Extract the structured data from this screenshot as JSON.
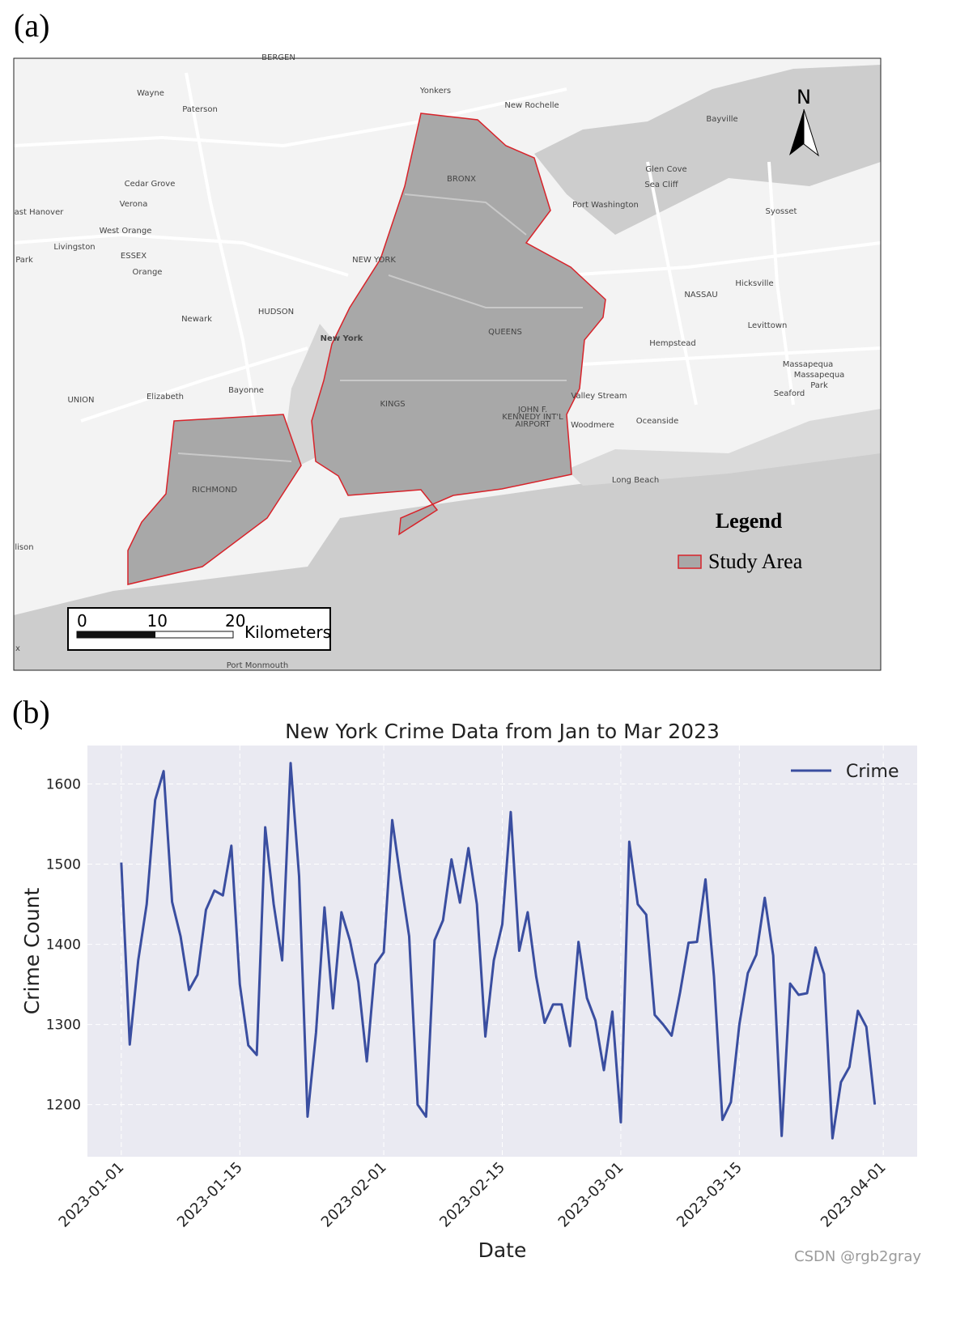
{
  "panel_a_label": "(a)",
  "panel_b_label": "(b)",
  "map": {
    "place_labels": [
      "BERGEN",
      "Wayne",
      "Paterson",
      "Yonkers",
      "New Rochelle",
      "Bayville",
      "Cedar Grove",
      "Verona",
      "ast Hanover",
      "West Orange",
      "Livingston",
      "ESSEX",
      "Orange",
      "Park",
      "BRONX",
      "Glen Cove",
      "Sea Cliff",
      "Port Washington",
      "Syosset",
      "NEW YORK",
      "Hicksville",
      "NASSAU",
      "HUDSON",
      "Newark",
      "New York",
      "QUEENS",
      "Levittown",
      "Hempstead",
      "Massapequa",
      "Massapequa",
      "Park",
      "Seaford",
      "UNION",
      "Elizabeth",
      "Bayonne",
      "KINGS",
      "Valley Stream",
      "JOHN F.",
      "KENNEDY INT'L",
      "AIRPORT",
      "Woodmere",
      "Oceanside",
      "RICHMOND",
      "Long Beach",
      "lison",
      "x",
      "Port Monmouth"
    ],
    "north": "N",
    "legend": {
      "title": "Legend",
      "items": [
        "Study Area"
      ]
    },
    "scale_bar": {
      "ticks": [
        0,
        10,
        20
      ],
      "unit": "Kilometers"
    }
  },
  "chart_data": {
    "type": "line",
    "title": "New York Crime Data from Jan to Mar 2023",
    "x_label": "Date",
    "y_label": "Crime Count",
    "x": [
      "2023-01-01",
      "2023-01-02",
      "2023-01-03",
      "2023-01-04",
      "2023-01-05",
      "2023-01-06",
      "2023-01-07",
      "2023-01-08",
      "2023-01-09",
      "2023-01-10",
      "2023-01-11",
      "2023-01-12",
      "2023-01-13",
      "2023-01-14",
      "2023-01-15",
      "2023-01-16",
      "2023-01-17",
      "2023-01-18",
      "2023-01-19",
      "2023-01-20",
      "2023-01-21",
      "2023-01-22",
      "2023-01-23",
      "2023-01-24",
      "2023-01-25",
      "2023-01-26",
      "2023-01-27",
      "2023-01-28",
      "2023-01-29",
      "2023-01-30",
      "2023-01-31",
      "2023-02-01",
      "2023-02-02",
      "2023-02-03",
      "2023-02-04",
      "2023-02-05",
      "2023-02-06",
      "2023-02-07",
      "2023-02-08",
      "2023-02-09",
      "2023-02-10",
      "2023-02-11",
      "2023-02-12",
      "2023-02-13",
      "2023-02-14",
      "2023-02-15",
      "2023-02-16",
      "2023-02-17",
      "2023-02-18",
      "2023-02-19",
      "2023-02-20",
      "2023-02-21",
      "2023-02-22",
      "2023-02-23",
      "2023-02-24",
      "2023-02-25",
      "2023-02-26",
      "2023-02-27",
      "2023-02-28",
      "2023-03-01",
      "2023-03-02",
      "2023-03-03",
      "2023-03-04",
      "2023-03-05",
      "2023-03-06",
      "2023-03-07",
      "2023-03-08",
      "2023-03-09",
      "2023-03-10",
      "2023-03-11",
      "2023-03-12",
      "2023-03-13",
      "2023-03-14",
      "2023-03-15",
      "2023-03-16",
      "2023-03-17",
      "2023-03-18",
      "2023-03-19",
      "2023-03-20",
      "2023-03-21",
      "2023-03-22",
      "2023-03-23",
      "2023-03-24",
      "2023-03-25",
      "2023-03-26",
      "2023-03-27",
      "2023-03-28",
      "2023-03-29",
      "2023-03-30",
      "2023-03-31"
    ],
    "series": [
      {
        "name": "Crime",
        "color": "#3a4ea0",
        "values": [
          1502,
          1275,
          1380,
          1450,
          1580,
          1616,
          1453,
          1410,
          1343,
          1362,
          1443,
          1467,
          1461,
          1523,
          1350,
          1274,
          1262,
          1546,
          1450,
          1380,
          1626,
          1485,
          1185,
          1290,
          1446,
          1320,
          1440,
          1405,
          1353,
          1254,
          1375,
          1390,
          1555,
          1480,
          1410,
          1200,
          1185,
          1405,
          1430,
          1506,
          1452,
          1520,
          1450,
          1285,
          1380,
          1425,
          1565,
          1392,
          1440,
          1360,
          1302,
          1325,
          1325,
          1273,
          1403,
          1333,
          1305,
          1243,
          1316,
          1178,
          1528,
          1450,
          1437,
          1312,
          1300,
          1286,
          1340,
          1402,
          1403,
          1481,
          1360,
          1181,
          1203,
          1300,
          1364,
          1387,
          1458,
          1386,
          1161,
          1351,
          1337,
          1339,
          1396,
          1363,
          1158,
          1228,
          1247,
          1317,
          1297,
          1200
        ]
      }
    ],
    "xlim": [
      "2022-12-28",
      "2023-04-05"
    ],
    "xticks": [
      "2023-01-01",
      "2023-01-15",
      "2023-02-01",
      "2023-02-15",
      "2023-03-01",
      "2023-03-15",
      "2023-04-01"
    ],
    "ylim": [
      1135,
      1648
    ],
    "yticks": [
      1200,
      1300,
      1400,
      1500,
      1600
    ],
    "grid": true,
    "legend_position": "upper right"
  },
  "watermark": "CSDN @rgb2gray"
}
